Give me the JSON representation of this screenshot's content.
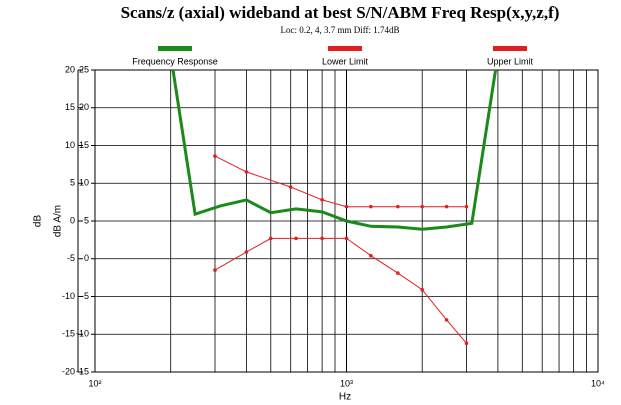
{
  "chart_data": {
    "type": "line",
    "title": "Scans/z (axial) wideband at best S/N/ABM Freq Resp(x,y,z,f)",
    "subtitle": "Loc: 0.2, 4, 3.7 mm Diff: 1.74dB",
    "x_label": "Hz",
    "y_label": "dB",
    "y2_label": "dB A/m",
    "log_x": true,
    "grid": true,
    "xlim": [
      100,
      10000
    ],
    "xticks": [
      {
        "value": 100,
        "label": "10²"
      },
      {
        "value": 1000,
        "label": "10³"
      },
      {
        "value": 10000,
        "label": "10⁴"
      }
    ],
    "x_minor_ticks": [
      200,
      300,
      400,
      500,
      600,
      700,
      800,
      900,
      2000,
      3000,
      4000,
      5000,
      6000,
      7000,
      8000,
      9000
    ],
    "ylim": [
      -20,
      20
    ],
    "yticks": [
      -20,
      -15,
      -10,
      -5,
      0,
      5,
      10,
      15,
      20
    ],
    "y2lim": [
      -15,
      25
    ],
    "y2ticks": [
      -15,
      -10,
      -5,
      0,
      5,
      10,
      15,
      20,
      25
    ],
    "series": [
      {
        "name": "Frequency Response",
        "color": "#1a8a1a",
        "x": [
          200,
          250,
          315,
          400,
          500,
          630,
          800,
          1000,
          1250,
          1600,
          2000,
          2500,
          3150,
          4000
        ],
        "values": [
          22,
          0.9,
          2.0,
          2.8,
          1.1,
          1.6,
          1.2,
          0,
          -0.7,
          -0.8,
          -1.1,
          -0.8,
          -0.3,
          22
        ]
      },
      {
        "name": "Lower Limit",
        "color": "#e02020",
        "x": [
          300,
          400,
          500,
          630,
          800,
          1000,
          1250,
          1600,
          2000,
          2500,
          3000
        ],
        "values": [
          -6.5,
          -4.1,
          -2.3,
          -2.3,
          -2.3,
          -2.3,
          -4.6,
          -6.9,
          -9.1,
          -13.1,
          -16.2
        ]
      },
      {
        "name": "Upper Limit",
        "color": "#e02020",
        "x": [
          300,
          400,
          600,
          800,
          1000,
          1250,
          1600,
          2000,
          2500,
          3000
        ],
        "values": [
          8.6,
          6.5,
          4.5,
          2.8,
          1.9,
          1.9,
          1.9,
          1.9,
          1.9,
          1.9
        ]
      }
    ]
  }
}
